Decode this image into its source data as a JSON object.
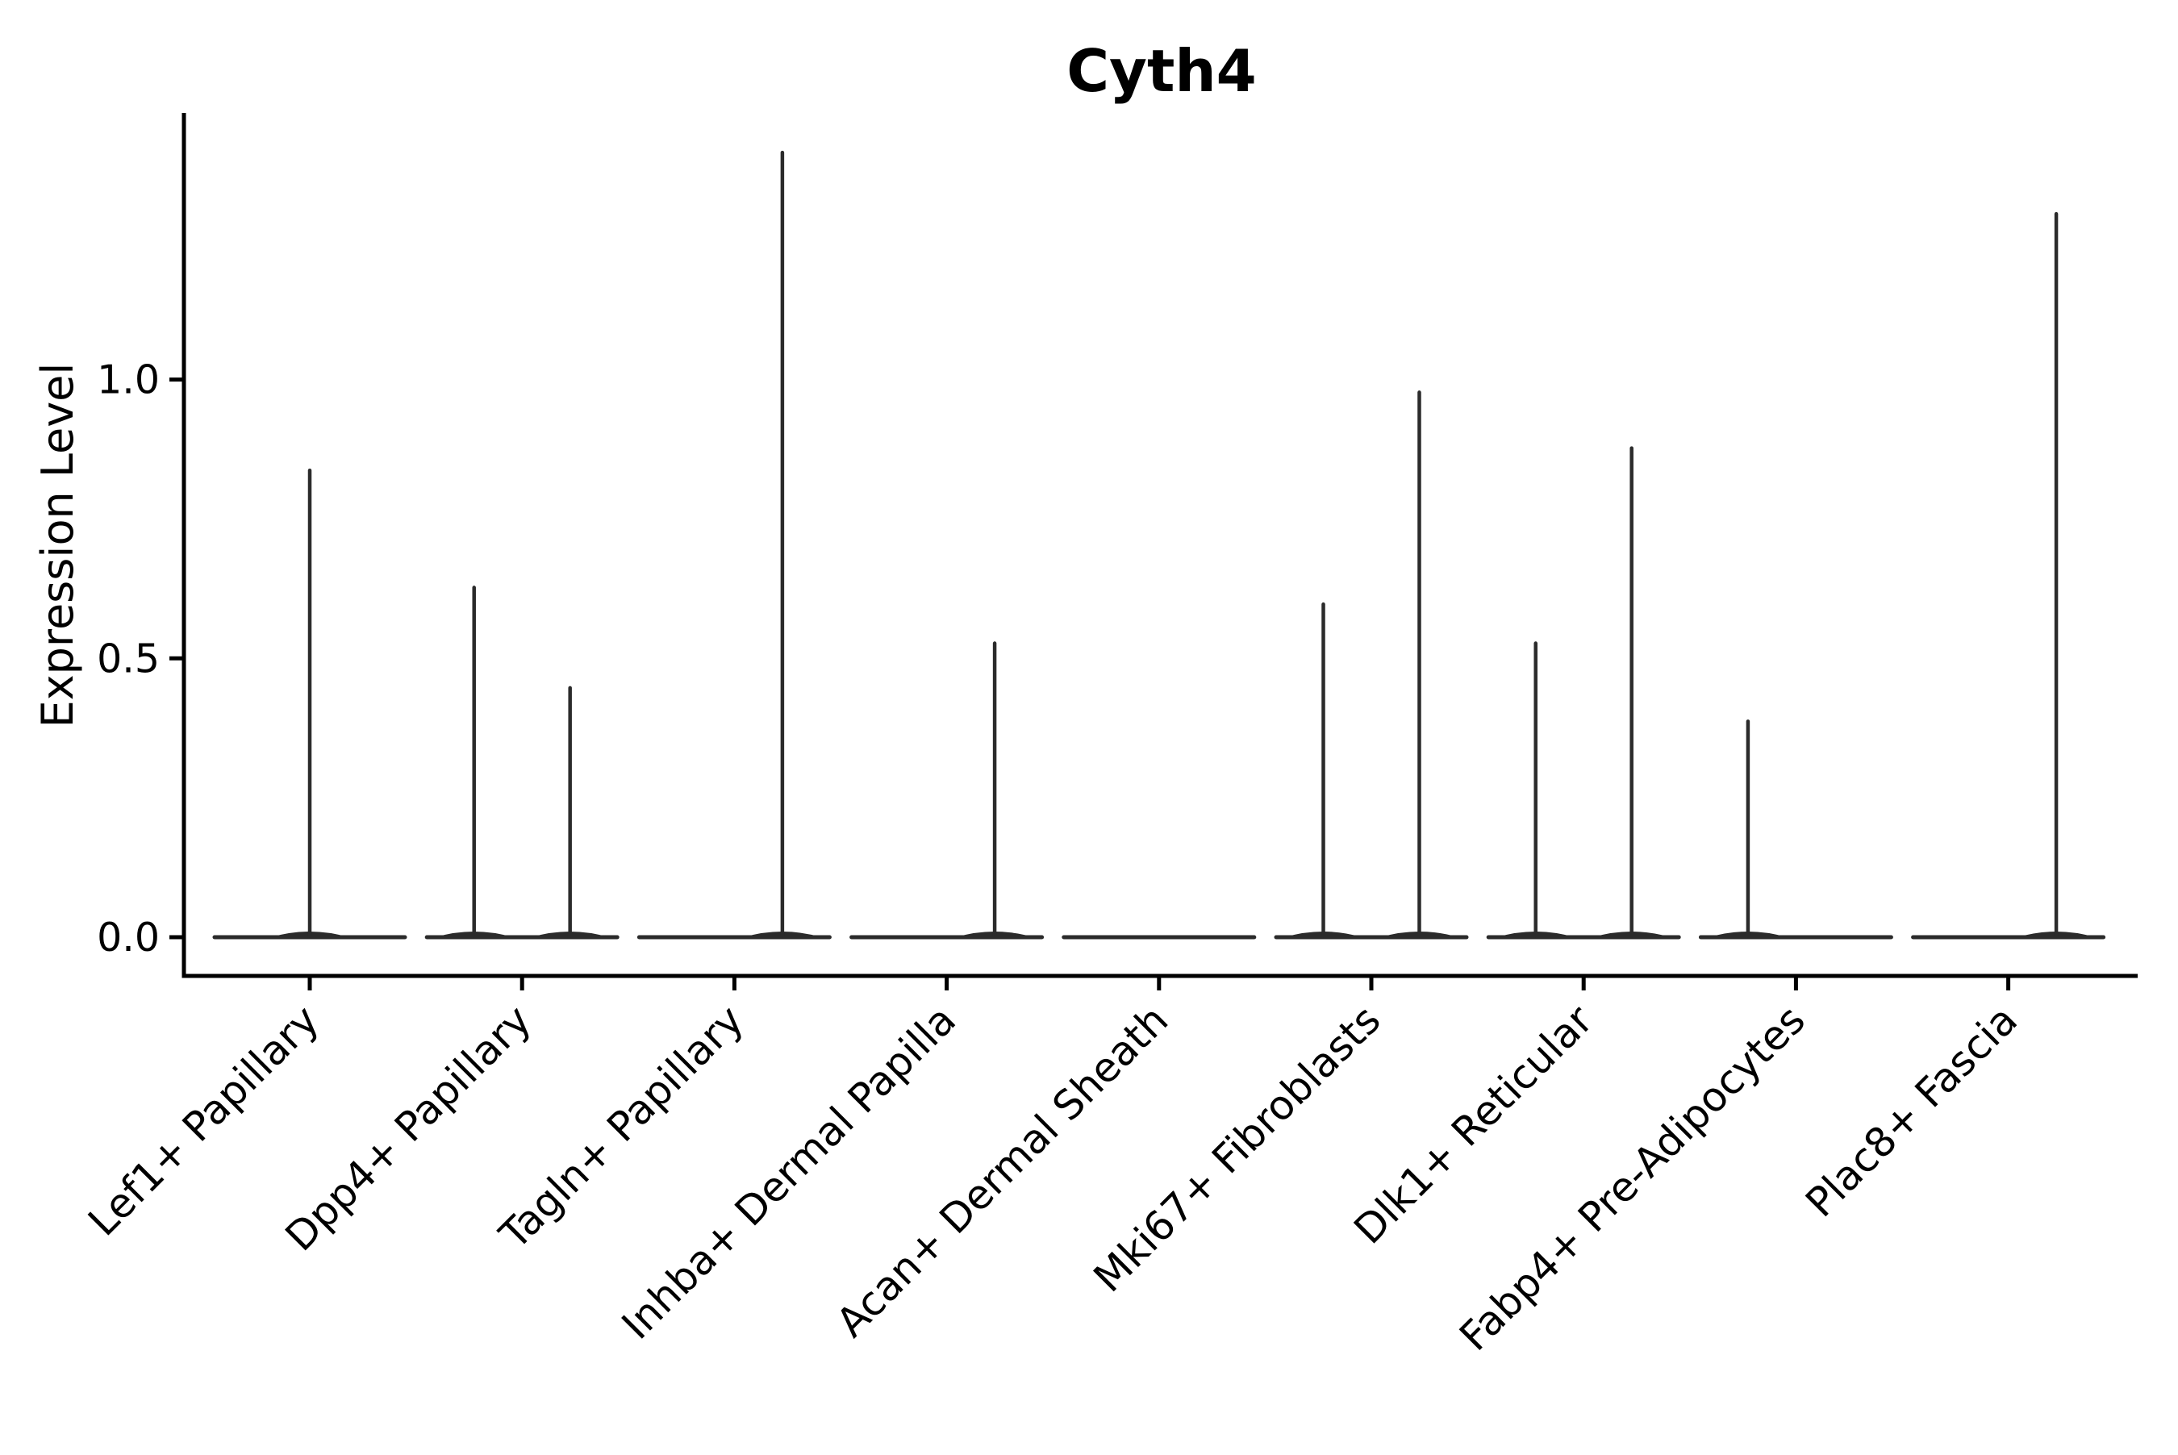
{
  "figure": {
    "background": "#ffffff",
    "axis_color": "#000000",
    "violin_color": "#2b2b2b"
  },
  "chart_data": {
    "type": "violin",
    "title": "Cyth4",
    "xlabel": "",
    "ylabel": "Expression Level",
    "grid": false,
    "legend_position": "none",
    "ylim": [
      -0.07,
      1.48
    ],
    "yticks": [
      0.0,
      0.5,
      1.0
    ],
    "ytick_labels": [
      "0.0",
      "0.5",
      "1.0"
    ],
    "categories": [
      "Lef1+ Papillary",
      "Dpp4+ Papillary",
      "Tagln+ Papillary",
      "Inhba+ Dermal Papilla",
      "Acan+ Dermal Sheath",
      "Mki67+ Fibroblasts",
      "Dlk1+ Reticular",
      "Fabp4+ Pre-Adipocytes",
      "Plac8+ Fascia"
    ],
    "violins": [
      {
        "category": "Lef1+ Papillary",
        "baseline_value": 0.0,
        "spikes": [
          {
            "offset": 0.0,
            "max": 0.84
          }
        ]
      },
      {
        "category": "Dpp4+ Papillary",
        "baseline_value": 0.0,
        "spikes": [
          {
            "offset": -0.226,
            "max": 0.63
          },
          {
            "offset": 0.226,
            "max": 0.45
          }
        ]
      },
      {
        "category": "Tagln+ Papillary",
        "baseline_value": 0.0,
        "spikes": [
          {
            "offset": 0.226,
            "max": 1.41
          }
        ]
      },
      {
        "category": "Inhba+ Dermal Papilla",
        "baseline_value": 0.0,
        "spikes": [
          {
            "offset": 0.226,
            "max": 0.53
          }
        ]
      },
      {
        "category": "Acan+ Dermal Sheath",
        "baseline_value": 0.0,
        "spikes": []
      },
      {
        "category": "Mki67+ Fibroblasts",
        "baseline_value": 0.0,
        "spikes": [
          {
            "offset": -0.226,
            "max": 0.6
          },
          {
            "offset": 0.226,
            "max": 0.98
          }
        ]
      },
      {
        "category": "Dlk1+ Reticular",
        "baseline_value": 0.0,
        "spikes": [
          {
            "offset": -0.226,
            "max": 0.53
          },
          {
            "offset": 0.226,
            "max": 0.88
          }
        ]
      },
      {
        "category": "Fabp4+ Pre-Adipocytes",
        "baseline_value": 0.0,
        "spikes": [
          {
            "offset": -0.226,
            "max": 0.39
          }
        ]
      },
      {
        "category": "Plac8+ Fascia",
        "baseline_value": 0.0,
        "spikes": [
          {
            "offset": 0.226,
            "max": 1.3
          }
        ]
      }
    ]
  }
}
